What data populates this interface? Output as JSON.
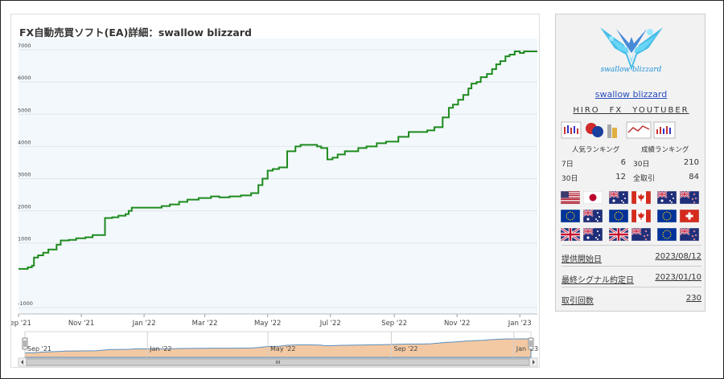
{
  "chart_data": {
    "type": "line",
    "title": "FX自動売買ソフト(EA)詳細：swallow blizzard",
    "y_ticks": [
      -1000,
      1000,
      2000,
      3000,
      4000,
      5000,
      6000,
      7000
    ],
    "y_tick_labels": [
      "-1000",
      "1000",
      "2000",
      "3000",
      "4000",
      "5000",
      "6000",
      "7000"
    ],
    "ylim": [
      -1200,
      7350
    ],
    "x_tick_labels": [
      "Sep '21",
      "Nov '21",
      "Jan '22",
      "Mar '22",
      "May '22",
      "Jul '22",
      "Sep '22",
      "Nov '22",
      "Jan '23"
    ],
    "x_tick_dates": [
      "2021-09-01",
      "2021-11-01",
      "2022-01-01",
      "2022-03-01",
      "2022-05-01",
      "2022-07-01",
      "2022-09-01",
      "2022-11-01",
      "2023-01-01"
    ],
    "xlim": [
      "2021-09-01",
      "2023-01-18"
    ],
    "navigator_labels": [
      "Sep '21",
      "Jan '22",
      "May '22",
      "Sep '22",
      "Jan '23"
    ],
    "navigator_dates": [
      "2021-09-01",
      "2022-01-01",
      "2022-05-01",
      "2022-09-01",
      "2023-01-01"
    ],
    "grid": "horizontal",
    "line_color": "#1e8a1e",
    "series": [
      {
        "x": [
          "2021-09-01",
          "2021-09-10",
          "2021-09-14",
          "2021-09-16",
          "2021-09-20",
          "2021-09-25",
          "2021-09-30",
          "2021-10-08",
          "2021-10-12",
          "2021-10-20",
          "2021-10-27",
          "2021-11-05",
          "2021-11-12",
          "2021-11-24",
          "2021-12-01",
          "2021-12-07",
          "2021-12-14",
          "2021-12-17",
          "2021-12-20",
          "2022-01-10",
          "2022-01-18",
          "2022-01-26",
          "2022-02-04",
          "2022-02-12",
          "2022-02-23",
          "2022-03-07",
          "2022-03-15",
          "2022-03-25",
          "2022-04-05",
          "2022-04-15",
          "2022-04-22",
          "2022-04-26",
          "2022-05-01",
          "2022-05-06",
          "2022-05-12",
          "2022-05-20",
          "2022-05-28",
          "2022-06-02",
          "2022-06-10",
          "2022-06-18",
          "2022-06-22",
          "2022-06-28",
          "2022-07-03",
          "2022-07-08",
          "2022-07-15",
          "2022-07-28",
          "2022-08-05",
          "2022-08-15",
          "2022-08-24",
          "2022-09-05",
          "2022-09-15",
          "2022-09-25",
          "2022-10-03",
          "2022-10-10",
          "2022-10-18",
          "2022-10-24",
          "2022-10-28",
          "2022-11-02",
          "2022-11-07",
          "2022-11-12",
          "2022-11-15",
          "2022-11-20",
          "2022-11-24",
          "2022-11-30",
          "2022-12-05",
          "2022-12-09",
          "2022-12-13",
          "2022-12-18",
          "2022-12-22",
          "2022-12-27",
          "2023-01-01",
          "2023-01-05",
          "2023-01-10",
          "2023-01-18"
        ],
        "y": [
          200,
          250,
          300,
          550,
          620,
          700,
          800,
          950,
          1080,
          1100,
          1150,
          1180,
          1250,
          1780,
          1800,
          1850,
          1900,
          2000,
          2100,
          2100,
          2150,
          2200,
          2280,
          2350,
          2400,
          2450,
          2420,
          2450,
          2480,
          2550,
          2800,
          3000,
          3250,
          3300,
          3350,
          3850,
          4000,
          4050,
          4050,
          4000,
          3950,
          3600,
          3650,
          3750,
          3850,
          3950,
          4000,
          4100,
          4150,
          4300,
          4450,
          4450,
          4500,
          4600,
          4900,
          5200,
          5300,
          5450,
          5600,
          5800,
          5950,
          6000,
          6150,
          6250,
          6400,
          6550,
          6650,
          6800,
          6850,
          6950,
          6900,
          6950,
          6950,
          6950
        ]
      }
    ]
  },
  "sidebar": {
    "logo_text": "swallow blizzard",
    "ea_name": "swallow blizzard",
    "author": "HIRO　FX　YOUTUBER",
    "popularity_header": "人気ランキング",
    "performance_header": "成績ランキング",
    "rank_rows": [
      {
        "label": "7日",
        "value": "6",
        "label2": "30日",
        "value2": "210"
      },
      {
        "label": "30日",
        "value": "12",
        "label2": "全取引",
        "value2": "84"
      }
    ],
    "flags": [
      "us",
      "jp",
      "au",
      "ca",
      "au",
      "nz",
      "eu",
      "au",
      "eu",
      "ca",
      "eu",
      "ch",
      "gb",
      "au",
      "gb",
      "nz",
      "eu",
      "nz"
    ],
    "info": [
      {
        "label": "提供開始日",
        "value": "2023/08/12"
      },
      {
        "label": "最終シグナル約定日",
        "value": "2023/01/10"
      },
      {
        "label": "取引回数",
        "value": "230"
      }
    ]
  }
}
